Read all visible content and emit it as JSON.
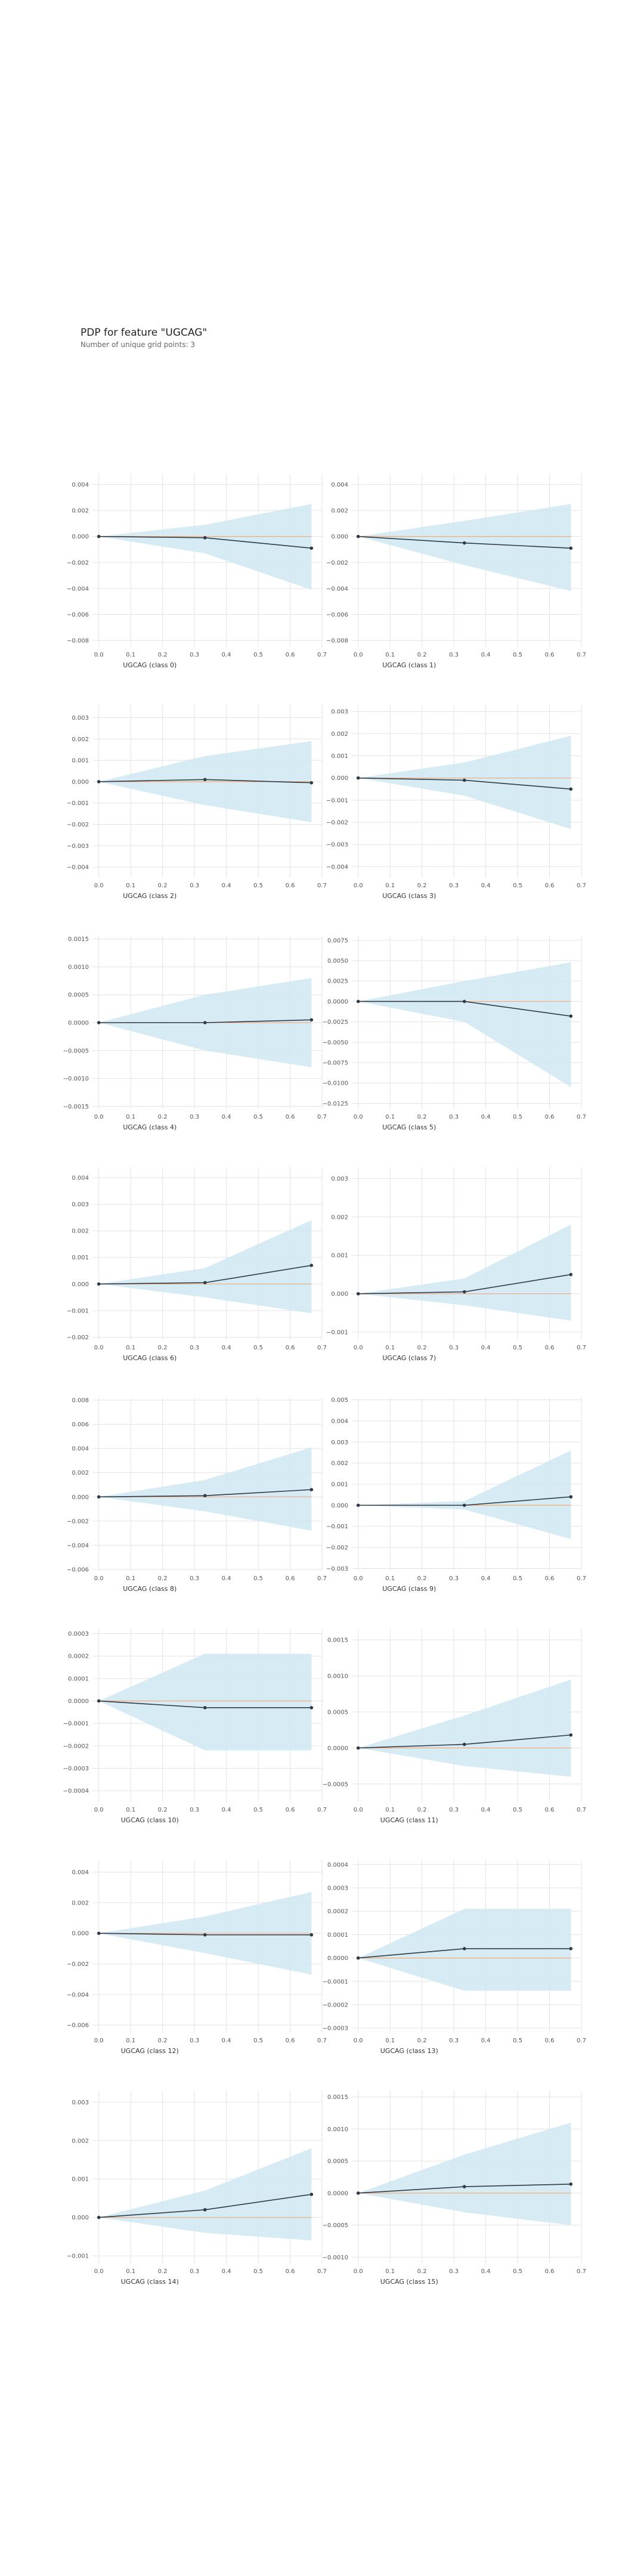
{
  "header": {
    "title": "PDP for feature \"UGCAG\"",
    "subtitle": "Number of unique grid points: 3"
  },
  "colors": {
    "band": "#cfe8f2",
    "line": "#2f3b47",
    "zero_line": "#f2a97e",
    "grid": "#e3e3e3"
  },
  "chart_data": [
    {
      "type": "line",
      "xlabel": "UGCAG (class 0)",
      "x": [
        0,
        0.333,
        0.667
      ],
      "y": [
        0,
        -0.0001,
        -0.0009
      ],
      "lower": [
        0,
        -0.0013,
        -0.0041
      ],
      "upper": [
        0,
        0.0009,
        0.0025
      ],
      "xlim": [
        -0.02,
        0.7
      ],
      "ylim": [
        -0.0085,
        0.0048
      ],
      "xticks": [
        0,
        0.1,
        0.2,
        0.3,
        0.4,
        0.5,
        0.6,
        0.7
      ],
      "yticks": [
        -0.008,
        -0.006,
        -0.004,
        -0.002,
        0,
        0.002,
        0.004
      ],
      "ytick_labels": [
        "−0.008",
        "−0.006",
        "−0.004",
        "−0.002",
        "0.000",
        "0.002",
        "0.004"
      ]
    },
    {
      "type": "line",
      "xlabel": "UGCAG (class 1)",
      "x": [
        0,
        0.333,
        0.667
      ],
      "y": [
        0,
        -0.0005,
        -0.0009
      ],
      "lower": [
        0,
        -0.0022,
        -0.0042
      ],
      "upper": [
        0,
        0.0012,
        0.0025
      ],
      "xlim": [
        -0.02,
        0.7
      ],
      "ylim": [
        -0.0085,
        0.0048
      ],
      "xticks": [
        0,
        0.1,
        0.2,
        0.3,
        0.4,
        0.5,
        0.6,
        0.7
      ],
      "yticks": [
        -0.008,
        -0.006,
        -0.004,
        -0.002,
        0,
        0.002,
        0.004
      ],
      "ytick_labels": [
        "−0.008",
        "−0.006",
        "−0.004",
        "−0.002",
        "0.000",
        "0.002",
        "0.004"
      ]
    },
    {
      "type": "line",
      "xlabel": "UGCAG (class 2)",
      "x": [
        0,
        0.333,
        0.667
      ],
      "y": [
        0,
        0.0001,
        -5e-05
      ],
      "lower": [
        0,
        -0.0011,
        -0.0019
      ],
      "upper": [
        0,
        0.0012,
        0.0019
      ],
      "xlim": [
        -0.02,
        0.7
      ],
      "ylim": [
        -0.0045,
        0.0036
      ],
      "xticks": [
        0,
        0.1,
        0.2,
        0.3,
        0.4,
        0.5,
        0.6,
        0.7
      ],
      "yticks": [
        -0.004,
        -0.003,
        -0.002,
        -0.001,
        0,
        0.001,
        0.002,
        0.003
      ],
      "ytick_labels": [
        "−0.004",
        "−0.003",
        "−0.002",
        "−0.001",
        "0.000",
        "0.001",
        "0.002",
        "0.003"
      ]
    },
    {
      "type": "line",
      "xlabel": "UGCAG (class 3)",
      "x": [
        0,
        0.333,
        0.667
      ],
      "y": [
        0,
        -0.0001,
        -0.0005
      ],
      "lower": [
        0,
        -0.0008,
        -0.0023
      ],
      "upper": [
        0,
        0.0007,
        0.0019
      ],
      "xlim": [
        -0.02,
        0.7
      ],
      "ylim": [
        -0.0045,
        0.0033
      ],
      "xticks": [
        0,
        0.1,
        0.2,
        0.3,
        0.4,
        0.5,
        0.6,
        0.7
      ],
      "yticks": [
        -0.004,
        -0.003,
        -0.002,
        -0.001,
        0,
        0.001,
        0.002,
        0.003
      ],
      "ytick_labels": [
        "−0.004",
        "−0.003",
        "−0.002",
        "−0.001",
        "0.000",
        "0.001",
        "0.002",
        "0.003"
      ]
    },
    {
      "type": "line",
      "xlabel": "UGCAG (class 4)",
      "x": [
        0,
        0.333,
        0.667
      ],
      "y": [
        0,
        0,
        5e-05
      ],
      "lower": [
        0,
        -0.0005,
        -0.0008
      ],
      "upper": [
        0,
        0.0005,
        0.0008
      ],
      "xlim": [
        -0.02,
        0.7
      ],
      "ylim": [
        -0.00155,
        0.00155
      ],
      "xticks": [
        0,
        0.1,
        0.2,
        0.3,
        0.4,
        0.5,
        0.6,
        0.7
      ],
      "yticks": [
        -0.0015,
        -0.001,
        -0.0005,
        0,
        0.0005,
        0.001,
        0.0015
      ],
      "ytick_labels": [
        "−0.0015",
        "−0.0010",
        "−0.0005",
        "0.0000",
        "0.0005",
        "0.0010",
        "0.0015"
      ]
    },
    {
      "type": "line",
      "xlabel": "UGCAG (class 5)",
      "x": [
        0,
        0.333,
        0.667
      ],
      "y": [
        0,
        0,
        -0.0018
      ],
      "lower": [
        0,
        -0.0025,
        -0.0105
      ],
      "upper": [
        0,
        0.0025,
        0.0048
      ],
      "xlim": [
        -0.02,
        0.7
      ],
      "ylim": [
        -0.0132,
        0.008
      ],
      "xticks": [
        0,
        0.1,
        0.2,
        0.3,
        0.4,
        0.5,
        0.6,
        0.7
      ],
      "yticks": [
        -0.0125,
        -0.01,
        -0.0075,
        -0.005,
        -0.0025,
        0,
        0.0025,
        0.005,
        0.0075
      ],
      "ytick_labels": [
        "−0.0125",
        "−0.0100",
        "−0.0075",
        "−0.0050",
        "−0.0025",
        "0.0000",
        "0.0025",
        "0.0050",
        "0.0075"
      ]
    },
    {
      "type": "line",
      "xlabel": "UGCAG (class 6)",
      "x": [
        0,
        0.333,
        0.667
      ],
      "y": [
        0,
        5e-05,
        0.0007
      ],
      "lower": [
        0,
        -0.0005,
        -0.0011
      ],
      "upper": [
        0,
        0.0006,
        0.0024
      ],
      "xlim": [
        -0.02,
        0.7
      ],
      "ylim": [
        -0.0021,
        0.0044
      ],
      "xticks": [
        0,
        0.1,
        0.2,
        0.3,
        0.4,
        0.5,
        0.6,
        0.7
      ],
      "yticks": [
        -0.002,
        -0.001,
        0,
        0.001,
        0.002,
        0.003,
        0.004
      ],
      "ytick_labels": [
        "−0.002",
        "−0.001",
        "0.000",
        "0.001",
        "0.002",
        "0.003",
        "0.004"
      ]
    },
    {
      "type": "line",
      "xlabel": "UGCAG (class 7)",
      "x": [
        0,
        0.333,
        0.667
      ],
      "y": [
        0,
        5e-05,
        0.0005
      ],
      "lower": [
        0,
        -0.0003,
        -0.0007
      ],
      "upper": [
        0,
        0.0004,
        0.0018
      ],
      "xlim": [
        -0.02,
        0.7
      ],
      "ylim": [
        -0.0012,
        0.0033
      ],
      "xticks": [
        0,
        0.1,
        0.2,
        0.3,
        0.4,
        0.5,
        0.6,
        0.7
      ],
      "yticks": [
        -0.001,
        0,
        0.001,
        0.002,
        0.003
      ],
      "ytick_labels": [
        "−0.001",
        "0.000",
        "0.001",
        "0.002",
        "0.003"
      ]
    },
    {
      "type": "line",
      "xlabel": "UGCAG (class 8)",
      "x": [
        0,
        0.333,
        0.667
      ],
      "y": [
        0,
        0.0001,
        0.0006
      ],
      "lower": [
        0,
        -0.0012,
        -0.0028
      ],
      "upper": [
        0,
        0.0014,
        0.0041
      ],
      "xlim": [
        -0.02,
        0.7
      ],
      "ylim": [
        -0.0061,
        0.0082
      ],
      "xticks": [
        0,
        0.1,
        0.2,
        0.3,
        0.4,
        0.5,
        0.6,
        0.7
      ],
      "yticks": [
        -0.006,
        -0.004,
        -0.002,
        0,
        0.002,
        0.004,
        0.006,
        0.008
      ],
      "ytick_labels": [
        "−0.006",
        "−0.004",
        "−0.002",
        "0.000",
        "0.002",
        "0.004",
        "0.006",
        "0.008"
      ]
    },
    {
      "type": "line",
      "xlabel": "UGCAG (class 9)",
      "x": [
        0,
        0.333,
        0.667
      ],
      "y": [
        0,
        0,
        0.0004
      ],
      "lower": [
        0,
        -0.0002,
        -0.0016
      ],
      "upper": [
        0,
        0.0002,
        0.0026
      ],
      "xlim": [
        -0.02,
        0.7
      ],
      "ylim": [
        -0.0031,
        0.0051
      ],
      "xticks": [
        0,
        0.1,
        0.2,
        0.3,
        0.4,
        0.5,
        0.6,
        0.7
      ],
      "yticks": [
        -0.003,
        -0.002,
        -0.001,
        0,
        0.001,
        0.002,
        0.003,
        0.004,
        0.005
      ],
      "ytick_labels": [
        "−0.003",
        "−0.002",
        "−0.001",
        "0.000",
        "0.001",
        "0.002",
        "0.003",
        "0.004",
        "0.005"
      ]
    },
    {
      "type": "line",
      "xlabel": "UGCAG (class 10)",
      "x": [
        0,
        0.333,
        0.667
      ],
      "y": [
        0,
        -3e-05,
        -3e-05
      ],
      "lower": [
        0,
        -0.00022,
        -0.00022
      ],
      "upper": [
        0,
        0.00021,
        0.00021
      ],
      "xlim": [
        -0.02,
        0.7
      ],
      "ylim": [
        -0.00045,
        0.00032
      ],
      "xticks": [
        0,
        0.1,
        0.2,
        0.3,
        0.4,
        0.5,
        0.6,
        0.7
      ],
      "yticks": [
        -0.0004,
        -0.0003,
        -0.0002,
        -0.0001,
        0,
        0.0001,
        0.0002,
        0.0003
      ],
      "ytick_labels": [
        "−0.0004",
        "−0.0003",
        "−0.0002",
        "−0.0001",
        "0.0000",
        "0.0001",
        "0.0002",
        "0.0003"
      ]
    },
    {
      "type": "line",
      "xlabel": "UGCAG (class 11)",
      "x": [
        0,
        0.333,
        0.667
      ],
      "y": [
        0,
        5e-05,
        0.00018
      ],
      "lower": [
        0,
        -0.00025,
        -0.0004
      ],
      "upper": [
        0,
        0.00045,
        0.00095
      ],
      "xlim": [
        -0.02,
        0.7
      ],
      "ylim": [
        -0.00075,
        0.00165
      ],
      "xticks": [
        0,
        0.1,
        0.2,
        0.3,
        0.4,
        0.5,
        0.6,
        0.7
      ],
      "yticks": [
        -0.0005,
        0,
        0.0005,
        0.001,
        0.0015
      ],
      "ytick_labels": [
        "−0.0005",
        "0.0000",
        "0.0005",
        "0.0010",
        "0.0015"
      ]
    },
    {
      "type": "line",
      "xlabel": "UGCAG (class 12)",
      "x": [
        0,
        0.333,
        0.667
      ],
      "y": [
        0,
        -0.0001,
        -0.0001
      ],
      "lower": [
        0,
        -0.0013,
        -0.0027
      ],
      "upper": [
        0,
        0.0011,
        0.0027
      ],
      "xlim": [
        -0.02,
        0.7
      ],
      "ylim": [
        -0.0065,
        0.0048
      ],
      "xticks": [
        0,
        0.1,
        0.2,
        0.3,
        0.4,
        0.5,
        0.6,
        0.7
      ],
      "yticks": [
        -0.006,
        -0.004,
        -0.002,
        0,
        0.002,
        0.004
      ],
      "ytick_labels": [
        "−0.006",
        "−0.004",
        "−0.002",
        "0.000",
        "0.002",
        "0.004"
      ]
    },
    {
      "type": "line",
      "xlabel": "UGCAG (class 13)",
      "x": [
        0,
        0.333,
        0.667
      ],
      "y": [
        0,
        4e-05,
        4e-05
      ],
      "lower": [
        0,
        -0.00014,
        -0.00014
      ],
      "upper": [
        0,
        0.00021,
        0.00021
      ],
      "xlim": [
        -0.02,
        0.7
      ],
      "ylim": [
        -0.00032,
        0.00042
      ],
      "xticks": [
        0,
        0.1,
        0.2,
        0.3,
        0.4,
        0.5,
        0.6,
        0.7
      ],
      "yticks": [
        -0.0003,
        -0.0002,
        -0.0001,
        0,
        0.0001,
        0.0002,
        0.0003,
        0.0004
      ],
      "ytick_labels": [
        "−0.0003",
        "−0.0002",
        "−0.0001",
        "0.0000",
        "0.0001",
        "0.0002",
        "0.0003",
        "0.0004"
      ]
    },
    {
      "type": "line",
      "xlabel": "UGCAG (class 14)",
      "x": [
        0,
        0.333,
        0.667
      ],
      "y": [
        0,
        0.0002,
        0.0006
      ],
      "lower": [
        0,
        -0.0004,
        -0.0006
      ],
      "upper": [
        0,
        0.0007,
        0.0018
      ],
      "xlim": [
        -0.02,
        0.7
      ],
      "ylim": [
        -0.0012,
        0.0033
      ],
      "xticks": [
        0,
        0.1,
        0.2,
        0.3,
        0.4,
        0.5,
        0.6,
        0.7
      ],
      "yticks": [
        -0.001,
        0,
        0.001,
        0.002,
        0.003
      ],
      "ytick_labels": [
        "−0.001",
        "0.000",
        "0.001",
        "0.002",
        "0.003"
      ]
    },
    {
      "type": "line",
      "xlabel": "UGCAG (class 15)",
      "x": [
        0,
        0.333,
        0.667
      ],
      "y": [
        0,
        0.0001,
        0.00014
      ],
      "lower": [
        0,
        -0.0003,
        -0.0005
      ],
      "upper": [
        0,
        0.0006,
        0.0011
      ],
      "xlim": [
        -0.02,
        0.7
      ],
      "ylim": [
        -0.0011,
        0.0016
      ],
      "xticks": [
        0,
        0.1,
        0.2,
        0.3,
        0.4,
        0.5,
        0.6,
        0.7
      ],
      "yticks": [
        -0.001,
        -0.0005,
        0,
        0.0005,
        0.001,
        0.0015
      ],
      "ytick_labels": [
        "−0.0010",
        "−0.0005",
        "0.0000",
        "0.0005",
        "0.0010",
        "0.0015"
      ]
    }
  ]
}
